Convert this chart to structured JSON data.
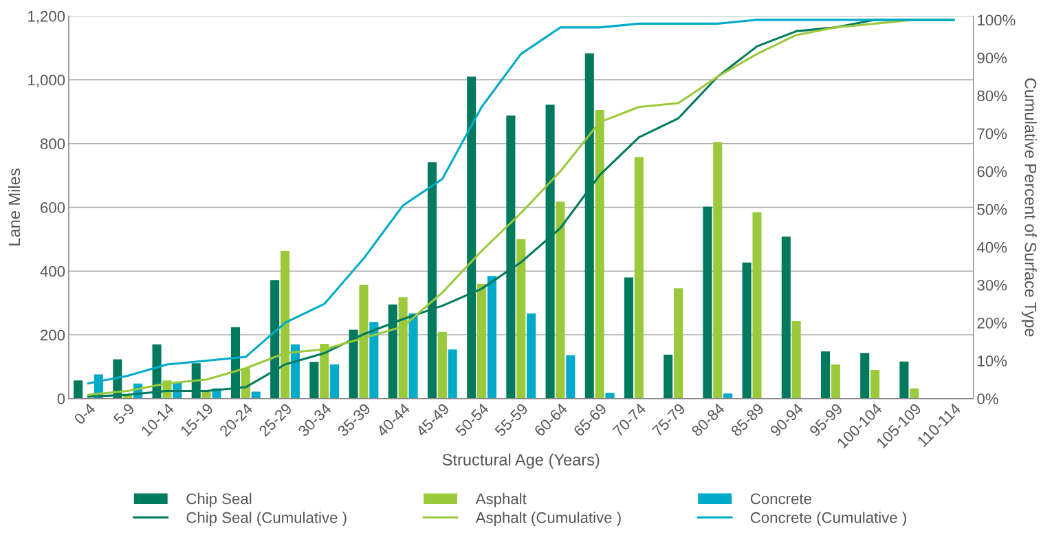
{
  "chart_data": {
    "type": "bar",
    "xlabel": "Structural Age (Years)",
    "ylabel": "Lane Miles",
    "y2label": "Cumulative Percent of Surface Type",
    "categories": [
      "0-4",
      "5-9",
      "10-14",
      "15-19",
      "20-24",
      "25-29",
      "30-34",
      "35-39",
      "40-44",
      "45-49",
      "50-54",
      "55-59",
      "60-64",
      "65-69",
      "70-74",
      "75-79",
      "80-84",
      "85-89",
      "90-94",
      "95-99",
      "100-104",
      "105-109",
      "110-114"
    ],
    "series": [
      {
        "name": "Chip Seal",
        "color": "#007a5e",
        "values": [
          57,
          123,
          170,
          111,
          224,
          372,
          115,
          216,
          295,
          741,
          1010,
          888,
          922,
          1083,
          380,
          138,
          602,
          427,
          508,
          148,
          143,
          116,
          0
        ]
      },
      {
        "name": "Asphalt",
        "color": "#9bc93c",
        "values": [
          0,
          10,
          57,
          26,
          95,
          463,
          172,
          357,
          318,
          209,
          360,
          500,
          618,
          905,
          758,
          346,
          805,
          585,
          243,
          107,
          90,
          32,
          0
        ]
      },
      {
        "name": "Concrete",
        "color": "#00aac8",
        "values": [
          76,
          47,
          50,
          32,
          22,
          170,
          107,
          240,
          267,
          154,
          385,
          267,
          136,
          18,
          0,
          0,
          16,
          0,
          0,
          0,
          0,
          0,
          0
        ]
      },
      {
        "name": "Chip Seal (Cumulative )",
        "type": "line",
        "axis": "y2",
        "color": "#007a5e",
        "values": [
          0.5,
          1,
          2,
          2,
          3,
          9,
          12,
          17,
          21,
          24.5,
          29,
          36,
          45,
          59,
          69,
          74,
          85,
          93,
          97,
          98,
          100,
          100,
          100
        ]
      },
      {
        "name": "Asphalt (Cumulative )",
        "type": "line",
        "axis": "y2",
        "color": "#9bc93c",
        "values": [
          1,
          2,
          4,
          5,
          8,
          12,
          13,
          16,
          19,
          28,
          39,
          49,
          60,
          73,
          77,
          78,
          85,
          91,
          96,
          98,
          99,
          100,
          100
        ]
      },
      {
        "name": "Concrete (Cumulative )",
        "type": "line",
        "axis": "y2",
        "color": "#00aac8",
        "values": [
          4,
          6,
          9,
          10,
          11,
          20,
          25,
          37,
          51,
          58,
          77,
          91,
          98,
          98,
          99,
          99,
          99,
          100,
          100,
          100,
          100,
          100,
          100
        ]
      }
    ],
    "ylim": [
      0,
      1200
    ],
    "yticks": [
      0,
      200,
      400,
      600,
      800,
      {
        "value": 1000,
        "label": "1,000"
      },
      {
        "value": 1200,
        "label": "1,200"
      }
    ],
    "y2lim": [
      0,
      101
    ],
    "y2ticks": [
      {
        "value": 0,
        "label": "0%"
      },
      {
        "value": 10,
        "label": "10%"
      },
      {
        "value": 20,
        "label": "20%"
      },
      {
        "value": 30,
        "label": "30%"
      },
      {
        "value": 40,
        "label": "40%"
      },
      {
        "value": 50,
        "label": "50%"
      },
      {
        "value": 60,
        "label": "60%"
      },
      {
        "value": 70,
        "label": "70%"
      },
      {
        "value": 80,
        "label": "80%"
      },
      {
        "value": 90,
        "label": "90%"
      },
      {
        "value": 100,
        "label": "100%"
      }
    ],
    "grid": "y",
    "legend": "bottom",
    "marker": "none",
    "line_style": "solid"
  }
}
